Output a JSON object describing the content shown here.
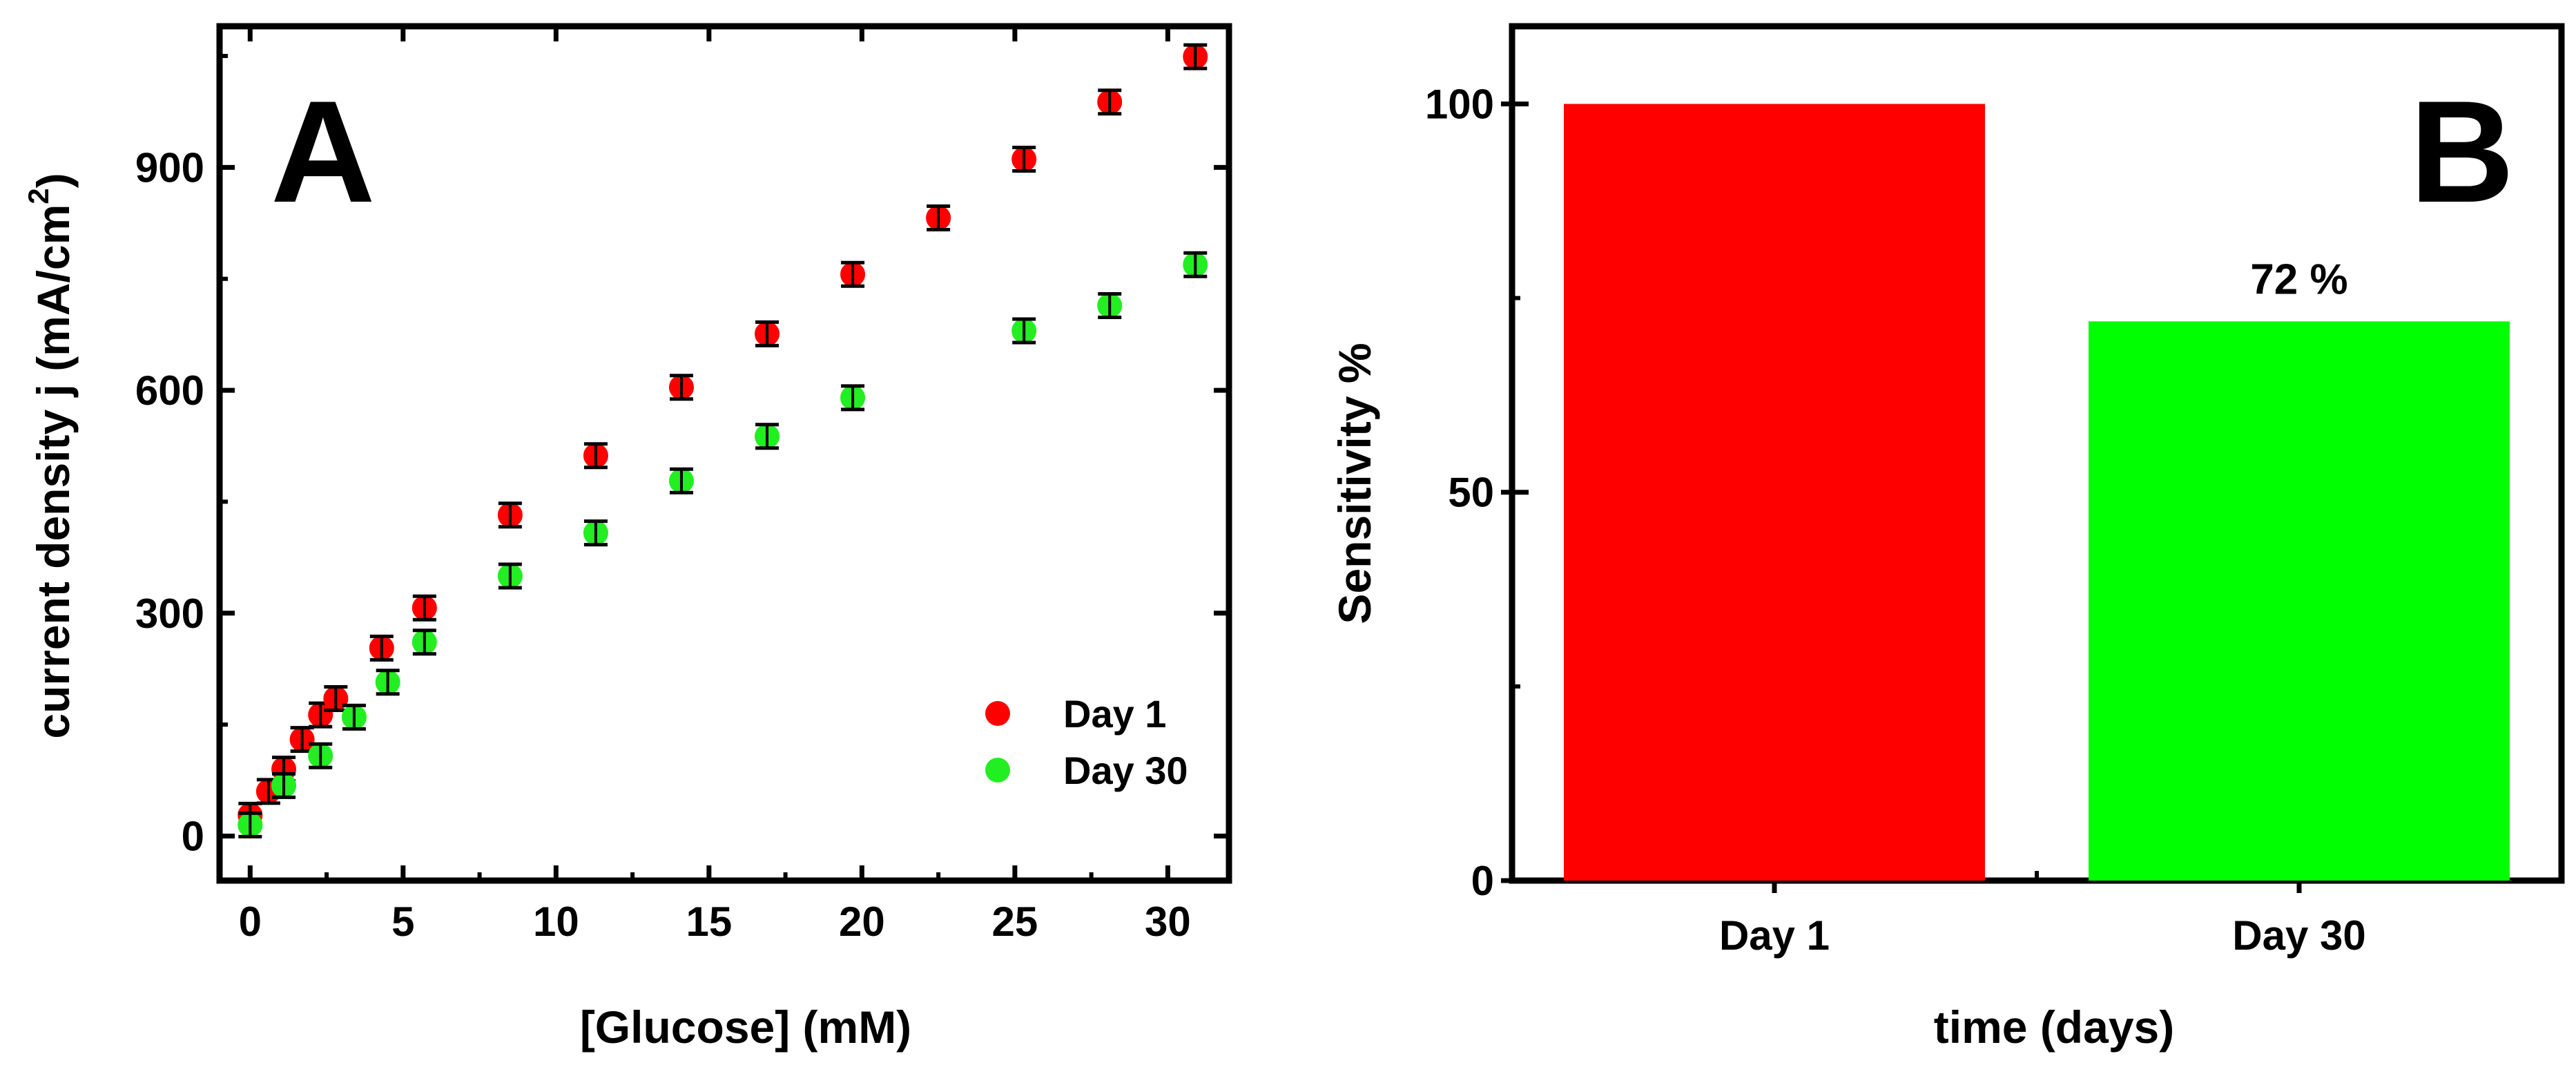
{
  "chart_data": [
    {
      "panel": "A",
      "type": "scatter",
      "xlabel": "[Glucose] (mM)",
      "ylabel": "current density j (mA/cm²)",
      "ylabel_main": "current density j (mA/cm",
      "ylabel_sup": "2",
      "ylabel_end": ")",
      "xlim": [
        -1,
        32
      ],
      "ylim": [
        -60,
        1090
      ],
      "xticks": [
        0,
        5,
        10,
        15,
        20,
        25,
        30
      ],
      "yticks": [
        0,
        300,
        600,
        900
      ],
      "series": [
        {
          "name": "Day 1",
          "color": "#ff0000",
          "points": [
            {
              "x": 0.0,
              "y": 28
            },
            {
              "x": 0.6,
              "y": 60
            },
            {
              "x": 1.1,
              "y": 90
            },
            {
              "x": 1.7,
              "y": 130
            },
            {
              "x": 2.3,
              "y": 163
            },
            {
              "x": 2.8,
              "y": 185
            },
            {
              "x": 4.3,
              "y": 253
            },
            {
              "x": 5.7,
              "y": 307
            },
            {
              "x": 8.5,
              "y": 432
            },
            {
              "x": 11.3,
              "y": 512
            },
            {
              "x": 14.1,
              "y": 604
            },
            {
              "x": 16.9,
              "y": 676
            },
            {
              "x": 19.7,
              "y": 756
            },
            {
              "x": 22.5,
              "y": 832
            },
            {
              "x": 25.3,
              "y": 911
            },
            {
              "x": 28.1,
              "y": 988
            },
            {
              "x": 30.9,
              "y": 1049
            }
          ]
        },
        {
          "name": "Day 30",
          "color": "#22ee22",
          "points": [
            {
              "x": 0.0,
              "y": 15
            },
            {
              "x": 1.1,
              "y": 68
            },
            {
              "x": 2.3,
              "y": 108
            },
            {
              "x": 3.4,
              "y": 160
            },
            {
              "x": 4.5,
              "y": 207
            },
            {
              "x": 5.7,
              "y": 261
            },
            {
              "x": 8.5,
              "y": 350
            },
            {
              "x": 11.3,
              "y": 408
            },
            {
              "x": 14.1,
              "y": 478
            },
            {
              "x": 16.9,
              "y": 538
            },
            {
              "x": 19.7,
              "y": 590
            },
            {
              "x": 25.3,
              "y": 680
            },
            {
              "x": 28.1,
              "y": 714
            },
            {
              "x": 30.9,
              "y": 769
            }
          ]
        }
      ],
      "legend": [
        {
          "label": "Day 1",
          "color": "#ff0000"
        },
        {
          "label": "Day 30",
          "color": "#22ee22"
        }
      ],
      "legend_position": "bottom-right",
      "panel_label": "A"
    },
    {
      "panel": "B",
      "type": "bar",
      "xlabel": "time (days)",
      "ylabel": "Sensitivity %",
      "categories": [
        "Day 1",
        "Day 30"
      ],
      "values": [
        100,
        72
      ],
      "colors": [
        "#ff0000",
        "#00ff00"
      ],
      "ylim": [
        0,
        110
      ],
      "yticks": [
        0,
        50,
        100
      ],
      "annotations": [
        {
          "category": "Day 30",
          "text": "72 %"
        }
      ],
      "panel_label": "B"
    }
  ]
}
